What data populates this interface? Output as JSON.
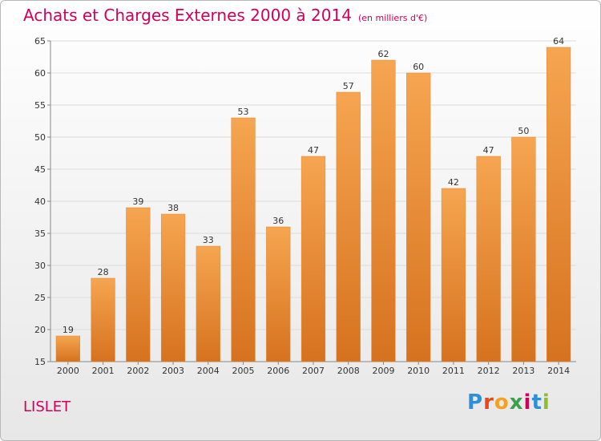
{
  "header": {
    "title": "Achats et Charges Externes 2000 à 2014",
    "unit": "(en milliers d'€)"
  },
  "footer": {
    "commune": "LISLET",
    "logo": "Proxiti"
  },
  "colors": {
    "title": "#d2005a",
    "bar_light": "#f5a34e",
    "bar_dark": "#d9731f",
    "grid": "#dddddd"
  },
  "chart_data": {
    "type": "bar",
    "title": "Achats et Charges Externes 2000 à 2014",
    "subtitle": "(en milliers d'€)",
    "categories": [
      "2000",
      "2001",
      "2002",
      "2003",
      "2004",
      "2005",
      "2006",
      "2007",
      "2008",
      "2009",
      "2010",
      "2011",
      "2012",
      "2013",
      "2014"
    ],
    "values": [
      19,
      28,
      39,
      38,
      33,
      53,
      36,
      47,
      57,
      62,
      60,
      42,
      47,
      50,
      64
    ],
    "ylim": [
      15,
      65
    ],
    "yticks": [
      15,
      20,
      25,
      30,
      35,
      40,
      45,
      50,
      55,
      60,
      65
    ],
    "grid": true,
    "xlabel": "",
    "ylabel": ""
  }
}
